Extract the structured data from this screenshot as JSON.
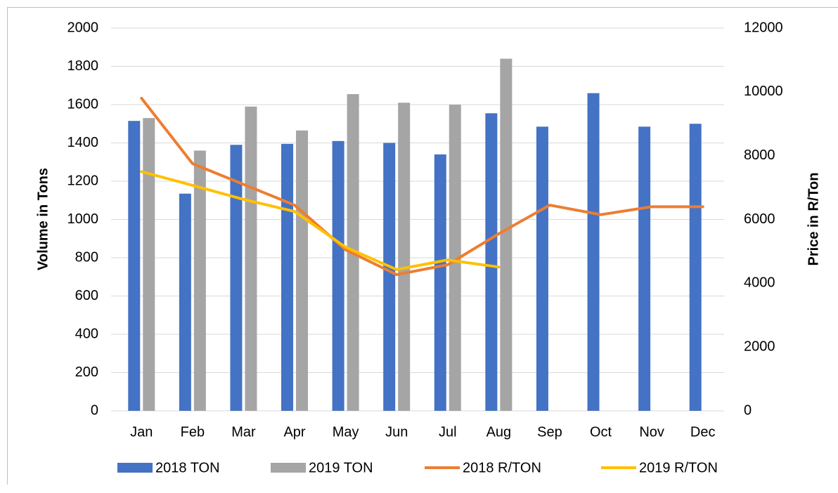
{
  "chart_data": {
    "type": "bar",
    "categories": [
      "Jan",
      "Feb",
      "Mar",
      "Apr",
      "May",
      "Jun",
      "Jul",
      "Aug",
      "Sep",
      "Oct",
      "Nov",
      "Dec"
    ],
    "y_label": "Volume in Tons",
    "y2_label": "Price in R/Ton",
    "ylim": [
      0,
      2000
    ],
    "yticks": [
      0,
      200,
      400,
      600,
      800,
      1000,
      1200,
      1400,
      1600,
      1800,
      2000
    ],
    "y2lim": [
      0,
      12000
    ],
    "y2ticks": [
      0,
      2000,
      4000,
      6000,
      8000,
      10000,
      12000
    ],
    "grid": true,
    "legend": "bottom",
    "series": [
      {
        "name": "2018 TON",
        "type": "bar",
        "color": "#4472c4",
        "values": [
          1515,
          1135,
          1390,
          1395,
          1410,
          1400,
          1340,
          1555,
          1485,
          1660,
          1485,
          1500
        ]
      },
      {
        "name": "2019 TON",
        "type": "bar",
        "color": "#a5a5a5",
        "values": [
          1530,
          1360,
          1590,
          1465,
          1655,
          1610,
          1600,
          1840,
          null,
          null,
          null,
          null
        ]
      },
      {
        "name": "2018 R/TON",
        "type": "line",
        "axis": "y2",
        "color": "#ed7d31",
        "values": [
          9800,
          7750,
          7100,
          6450,
          5050,
          4270,
          4580,
          5550,
          6450,
          6150,
          6400,
          6400
        ]
      },
      {
        "name": "2019 R/TON",
        "type": "line",
        "axis": "y2",
        "color": "#ffc000",
        "values": [
          7500,
          7070,
          6630,
          6250,
          5130,
          4430,
          4730,
          4510,
          null,
          null,
          null,
          null
        ]
      }
    ]
  }
}
